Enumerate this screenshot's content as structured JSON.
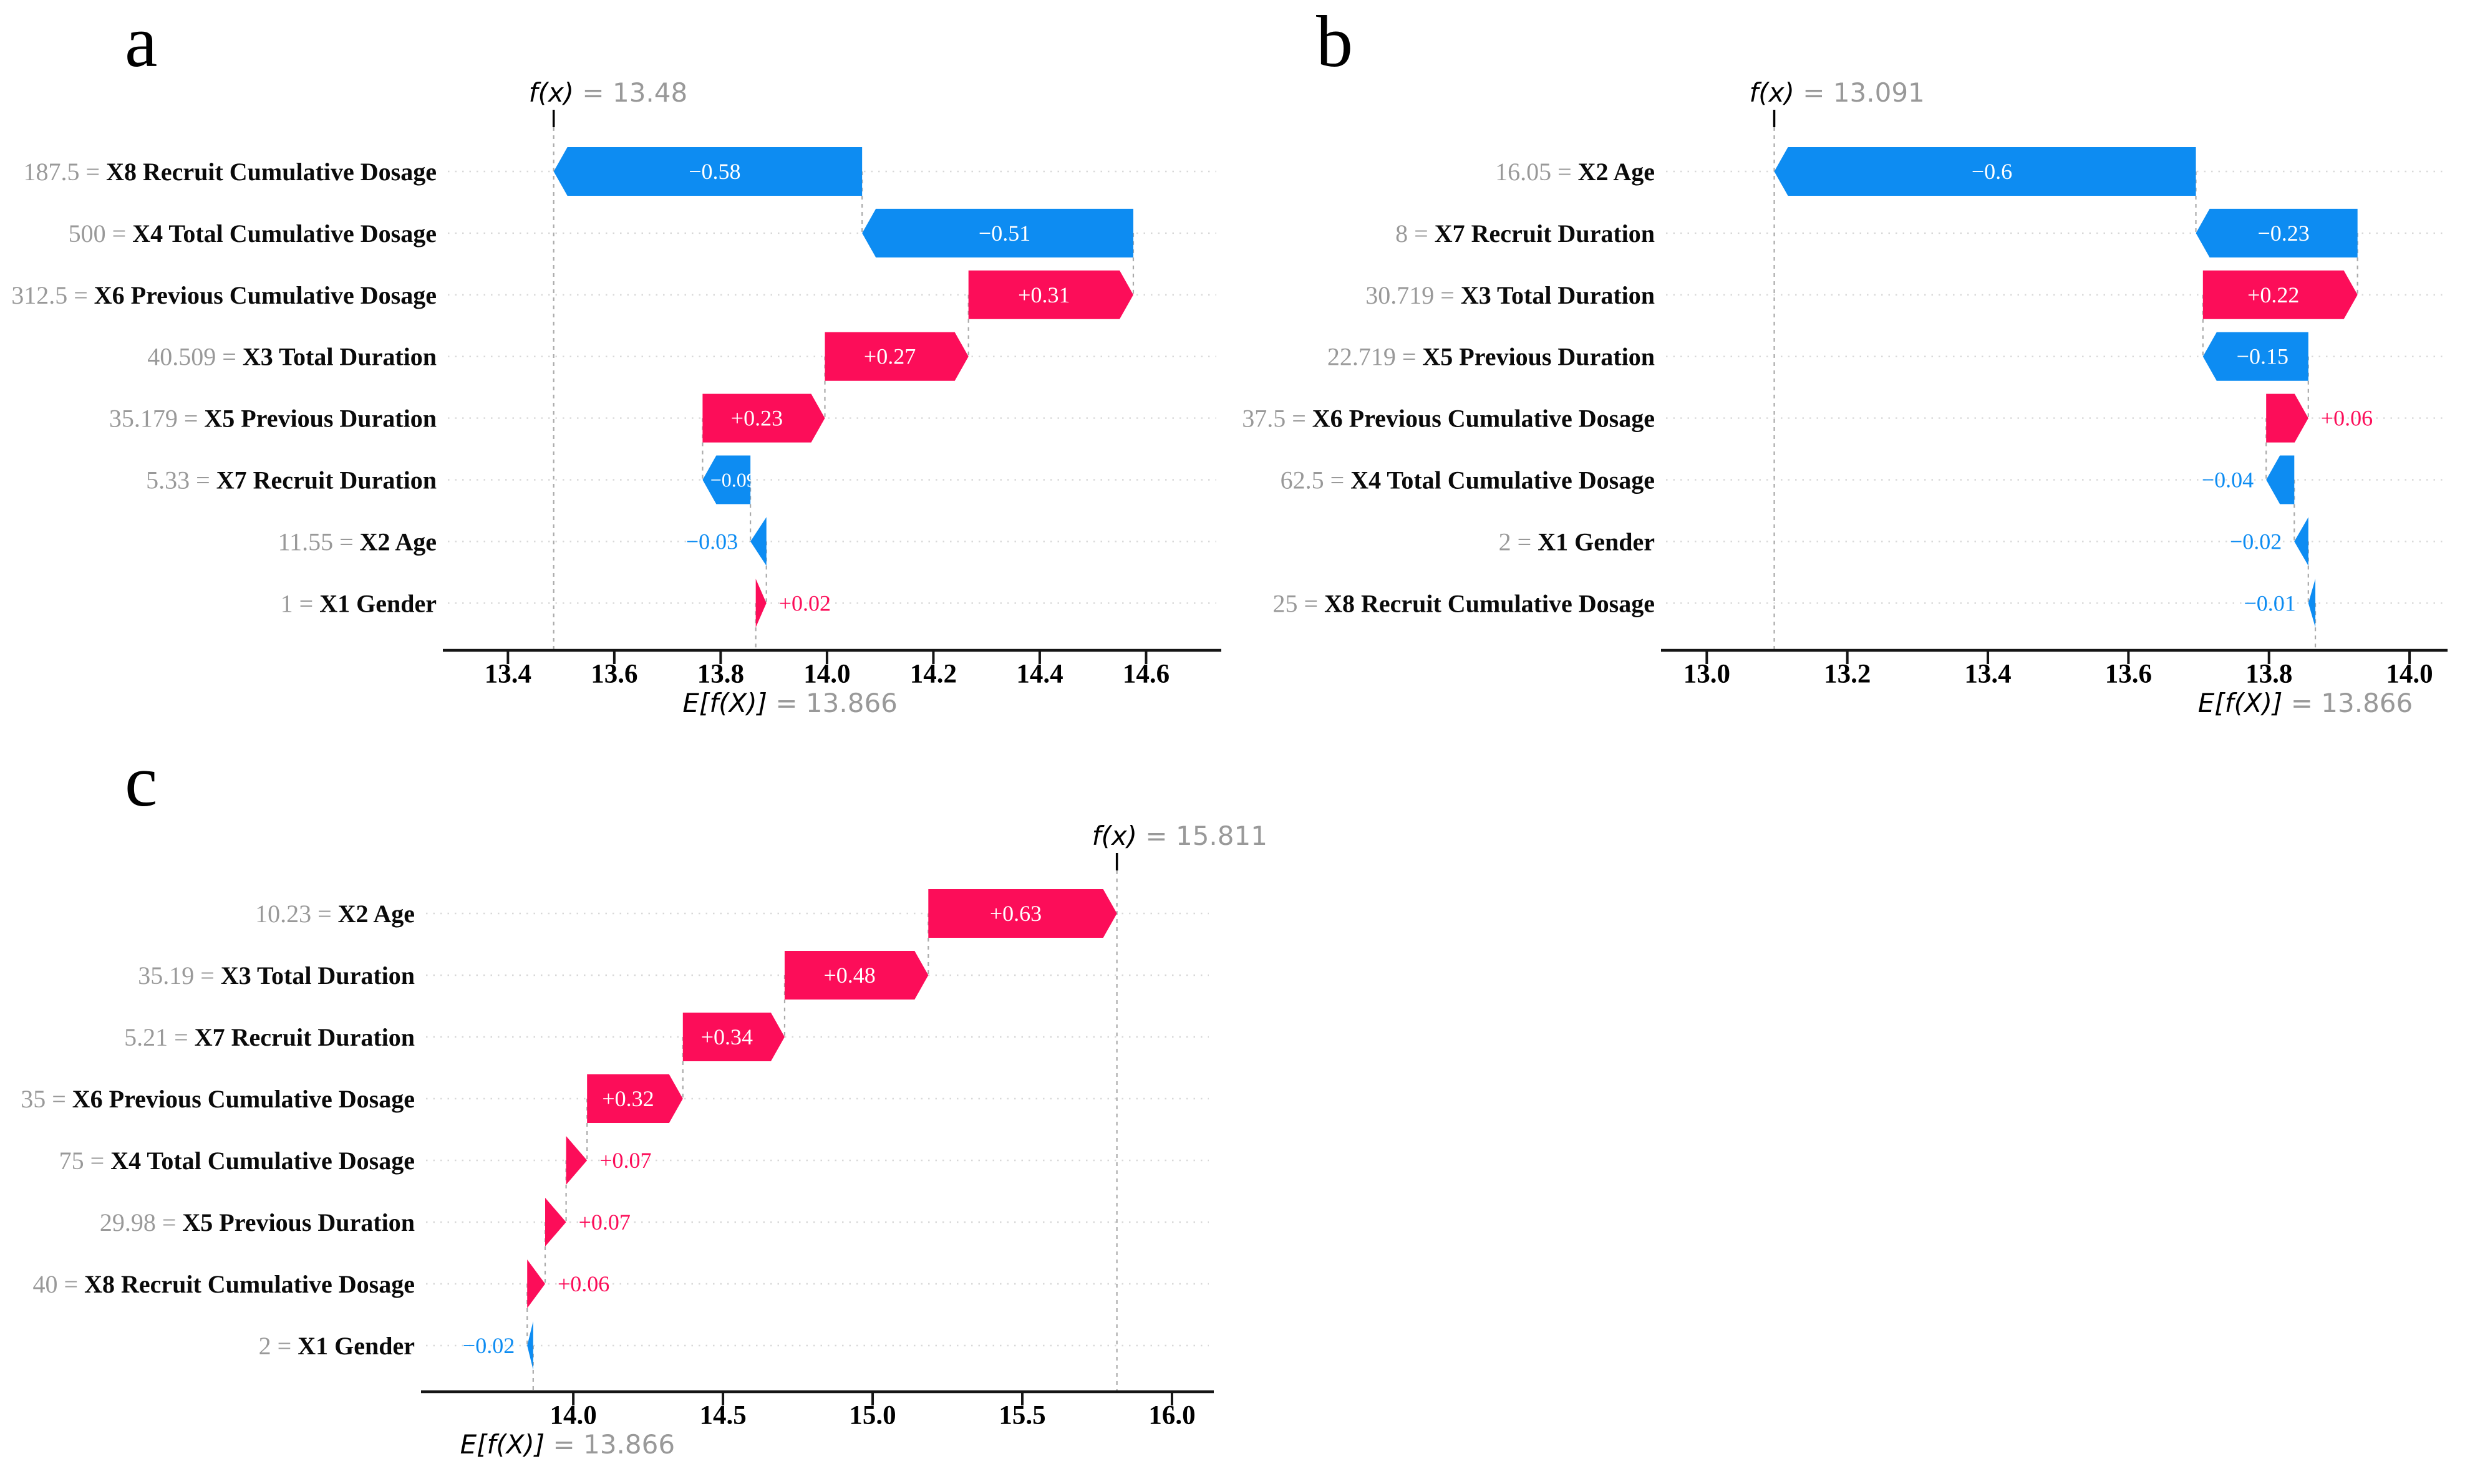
{
  "figure": {
    "kind": "SHAP waterfall plots",
    "colors": {
      "positive": "#fc0d59",
      "negative": "#0d8cf2",
      "value_gray": "#999999",
      "feature_text": "#0a0a0a",
      "gridline": "#d8d8d8",
      "dashed_line": "#aaaaaa",
      "axis": "#151515",
      "inside_label": "#ffffff"
    }
  },
  "chart_data": [
    {
      "type": "waterfall",
      "panel_label": "a",
      "fx_name": "f(x)",
      "fx_text": "= 13.48",
      "fx": 13.48,
      "ef_name": "E[f(X)]",
      "ef_text": "= 13.866",
      "ef": 13.866,
      "xlim": [
        13.287,
        14.732
      ],
      "xticks": [
        13.4,
        13.6,
        13.8,
        14.0,
        14.2,
        14.4,
        14.6
      ],
      "xtick_labels": [
        "13.4",
        "13.6",
        "13.8",
        "14.0",
        "14.2",
        "14.4",
        "14.6"
      ],
      "grid": "dotted-rows",
      "rows": [
        {
          "feature_value": "187.5",
          "feature": "X8 Recruit Cumulative Dosage",
          "shap": -0.58,
          "shap_label": "−0.58",
          "label_inside": true
        },
        {
          "feature_value": "500",
          "feature": "X4 Total Cumulative Dosage",
          "shap": -0.51,
          "shap_label": "−0.51",
          "label_inside": true
        },
        {
          "feature_value": "312.5",
          "feature": "X6 Previous Cumulative Dosage",
          "shap": 0.31,
          "shap_label": "+0.31",
          "label_inside": true
        },
        {
          "feature_value": "40.509",
          "feature": "X3 Total Duration",
          "shap": 0.27,
          "shap_label": "+0.27",
          "label_inside": true
        },
        {
          "feature_value": "35.179",
          "feature": "X5 Previous Duration",
          "shap": 0.23,
          "shap_label": "+0.23",
          "label_inside": true
        },
        {
          "feature_value": "5.33",
          "feature": "X7 Recruit Duration",
          "shap": -0.09,
          "shap_label": "−0.09",
          "label_inside": true
        },
        {
          "feature_value": "11.55",
          "feature": "X2 Age",
          "shap": -0.03,
          "shap_label": "−0.03",
          "label_inside": false
        },
        {
          "feature_value": "1",
          "feature": "X1 Gender",
          "shap": 0.02,
          "shap_label": "+0.02",
          "label_inside": false
        }
      ]
    },
    {
      "type": "waterfall",
      "panel_label": "b",
      "fx_name": "f(x)",
      "fx_text": "= 13.091",
      "fx": 13.091,
      "ef_name": "E[f(X)]",
      "ef_text": "= 13.866",
      "ef": 13.866,
      "xlim": [
        12.942,
        14.047
      ],
      "xticks": [
        13.0,
        13.2,
        13.4,
        13.6,
        13.8,
        14.0
      ],
      "xtick_labels": [
        "13.0",
        "13.2",
        "13.4",
        "13.6",
        "13.8",
        "14.0"
      ],
      "grid": "dotted-rows",
      "rows": [
        {
          "feature_value": "16.05",
          "feature": "X2 Age",
          "shap": -0.6,
          "shap_label": "−0.6",
          "label_inside": true
        },
        {
          "feature_value": "8",
          "feature": "X7 Recruit Duration",
          "shap": -0.23,
          "shap_label": "−0.23",
          "label_inside": true
        },
        {
          "feature_value": "30.719",
          "feature": "X3 Total Duration",
          "shap": 0.22,
          "shap_label": "+0.22",
          "label_inside": true
        },
        {
          "feature_value": "22.719",
          "feature": "X5 Previous Duration",
          "shap": -0.15,
          "shap_label": "−0.15",
          "label_inside": true
        },
        {
          "feature_value": "37.5",
          "feature": "X6 Previous Cumulative Dosage",
          "shap": 0.06,
          "shap_label": "+0.06",
          "label_inside": false
        },
        {
          "feature_value": "62.5",
          "feature": "X4 Total Cumulative Dosage",
          "shap": -0.04,
          "shap_label": "−0.04",
          "label_inside": false
        },
        {
          "feature_value": "2",
          "feature": "X1 Gender",
          "shap": -0.02,
          "shap_label": "−0.02",
          "label_inside": false
        },
        {
          "feature_value": "25",
          "feature": "X8 Recruit Cumulative Dosage",
          "shap": -0.01,
          "shap_label": "−0.01",
          "label_inside": false
        }
      ]
    },
    {
      "type": "waterfall",
      "panel_label": "c",
      "fx_name": "f(x)",
      "fx_text": "= 15.811",
      "fx": 15.811,
      "ef_name": "E[f(X)]",
      "ef_text": "= 13.866",
      "ef": 13.866,
      "xlim": [
        13.508,
        16.123
      ],
      "xticks": [
        14.0,
        14.5,
        15.0,
        15.5,
        16.0
      ],
      "xtick_labels": [
        "14.0",
        "14.5",
        "15.0",
        "15.5",
        "16.0"
      ],
      "grid": "dotted-rows",
      "rows": [
        {
          "feature_value": "10.23",
          "feature": "X2 Age",
          "shap": 0.63,
          "shap_label": "+0.63",
          "label_inside": true
        },
        {
          "feature_value": "35.19",
          "feature": "X3 Total Duration",
          "shap": 0.48,
          "shap_label": "+0.48",
          "label_inside": true
        },
        {
          "feature_value": "5.21",
          "feature": "X7 Recruit Duration",
          "shap": 0.34,
          "shap_label": "+0.34",
          "label_inside": true
        },
        {
          "feature_value": "35",
          "feature": "X6 Previous Cumulative Dosage",
          "shap": 0.32,
          "shap_label": "+0.32",
          "label_inside": true
        },
        {
          "feature_value": "75",
          "feature": "X4 Total Cumulative Dosage",
          "shap": 0.07,
          "shap_label": "+0.07",
          "label_inside": false
        },
        {
          "feature_value": "29.98",
          "feature": "X5 Previous Duration",
          "shap": 0.07,
          "shap_label": "+0.07",
          "label_inside": false
        },
        {
          "feature_value": "40",
          "feature": "X8 Recruit Cumulative Dosage",
          "shap": 0.06,
          "shap_label": "+0.06",
          "label_inside": false
        },
        {
          "feature_value": "2",
          "feature": "X1 Gender",
          "shap": -0.02,
          "shap_label": "−0.02",
          "label_inside": false
        }
      ]
    }
  ]
}
